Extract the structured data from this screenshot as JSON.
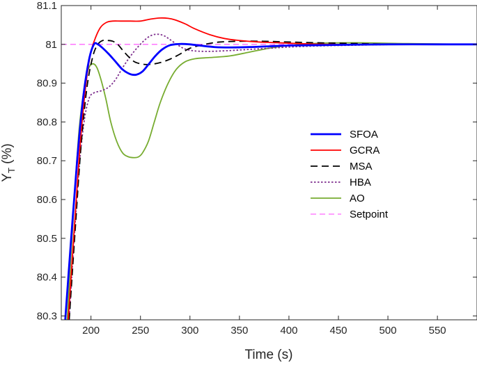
{
  "chart_data": {
    "type": "line",
    "xlabel": "Time (s)",
    "ylabel_main": "Y",
    "ylabel_sub": "T",
    "ylabel_suffix": " (%)",
    "xlim": [
      170,
      590
    ],
    "ylim": [
      80.29,
      81.1
    ],
    "xticks": [
      200,
      250,
      300,
      350,
      400,
      450,
      500,
      550
    ],
    "yticks": [
      80.3,
      80.4,
      80.5,
      80.6,
      80.7,
      80.8,
      80.9,
      81,
      81.1
    ],
    "grid": false,
    "legend_position": "center-right",
    "series": [
      {
        "name": "SFOA",
        "color": "#0000ff",
        "style": "solid",
        "x": [
          174,
          180,
          186,
          192,
          198,
          203,
          207,
          212,
          218,
          225,
          232,
          240,
          246,
          252,
          258,
          265,
          272,
          280,
          290,
          300,
          310,
          325,
          340,
          360,
          380,
          400,
          430,
          460,
          500,
          550,
          590
        ],
        "y": [
          80.29,
          80.5,
          80.7,
          80.86,
          80.96,
          81.0,
          81.0,
          80.99,
          80.975,
          80.955,
          80.935,
          80.923,
          80.922,
          80.93,
          80.948,
          80.97,
          80.987,
          80.998,
          81.001,
          81.0,
          80.997,
          80.993,
          80.992,
          80.993,
          80.995,
          80.997,
          80.998,
          80.999,
          81.0,
          81.0,
          81.0
        ]
      },
      {
        "name": "GCRA",
        "color": "#ff0000",
        "style": "solid",
        "x": [
          177,
          183,
          189,
          195,
          200,
          205,
          210,
          216,
          222,
          230,
          240,
          250,
          260,
          270,
          278,
          285,
          295,
          305,
          320,
          335,
          350,
          370,
          390,
          410,
          440,
          480,
          520,
          560,
          590
        ],
        "y": [
          80.29,
          80.52,
          80.74,
          80.9,
          80.98,
          81.02,
          81.045,
          81.057,
          81.06,
          81.06,
          81.06,
          81.06,
          81.065,
          81.068,
          81.067,
          81.063,
          81.053,
          81.04,
          81.025,
          81.015,
          81.01,
          81.006,
          81.004,
          81.002,
          81.0,
          81.0,
          81.0,
          81.0,
          81.0
        ]
      },
      {
        "name": "MSA",
        "color": "#000000",
        "style": "dashed",
        "x": [
          178,
          184,
          190,
          196,
          202,
          207,
          212,
          217,
          222,
          227,
          232,
          238,
          244,
          250,
          256,
          262,
          270,
          280,
          290,
          300,
          315,
          330,
          350,
          375,
          400,
          430,
          470,
          520,
          590
        ],
        "y": [
          80.29,
          80.52,
          80.74,
          80.89,
          80.97,
          81.0,
          81.01,
          81.01,
          81.008,
          81.0,
          80.985,
          80.968,
          80.955,
          80.95,
          80.948,
          80.949,
          80.953,
          80.962,
          80.975,
          80.99,
          81.0,
          81.006,
          81.008,
          81.008,
          81.006,
          81.004,
          81.002,
          81.0,
          81.0
        ]
      },
      {
        "name": "HBA",
        "color": "#7e2f8e",
        "style": "dotted",
        "x": [
          178,
          183,
          188,
          193,
          198,
          203,
          210,
          218,
          225,
          232,
          240,
          248,
          256,
          262,
          268,
          274,
          280,
          288,
          295,
          305,
          320,
          340,
          360,
          380,
          400,
          430,
          470,
          520,
          590
        ],
        "y": [
          80.29,
          80.5,
          80.68,
          80.8,
          80.86,
          80.875,
          80.88,
          80.89,
          80.91,
          80.94,
          80.97,
          80.995,
          81.015,
          81.024,
          81.026,
          81.022,
          81.012,
          80.998,
          80.988,
          80.983,
          80.982,
          80.984,
          80.987,
          80.99,
          80.993,
          80.996,
          80.998,
          81.0,
          81.0
        ]
      },
      {
        "name": "AO",
        "color": "#77ac30",
        "style": "solid",
        "x": [
          176,
          182,
          188,
          194,
          198,
          202,
          206,
          210,
          215,
          220,
          226,
          232,
          238,
          244,
          248,
          252,
          258,
          264,
          270,
          278,
          286,
          295,
          305,
          320,
          340,
          360,
          380,
          400,
          430,
          470,
          520,
          590
        ],
        "y": [
          80.29,
          80.55,
          80.78,
          80.9,
          80.94,
          80.95,
          80.94,
          80.91,
          80.86,
          80.8,
          80.75,
          80.72,
          80.71,
          80.708,
          80.71,
          80.72,
          80.75,
          80.8,
          80.85,
          80.9,
          80.935,
          80.955,
          80.963,
          80.966,
          80.97,
          80.98,
          80.99,
          80.997,
          81.003,
          81.004,
          81.002,
          81.0
        ]
      },
      {
        "name": "Setpoint",
        "color": "#ff66ff",
        "style": "setpoint",
        "x": [
          170,
          590
        ],
        "y": [
          81.0,
          81.0
        ]
      }
    ]
  }
}
